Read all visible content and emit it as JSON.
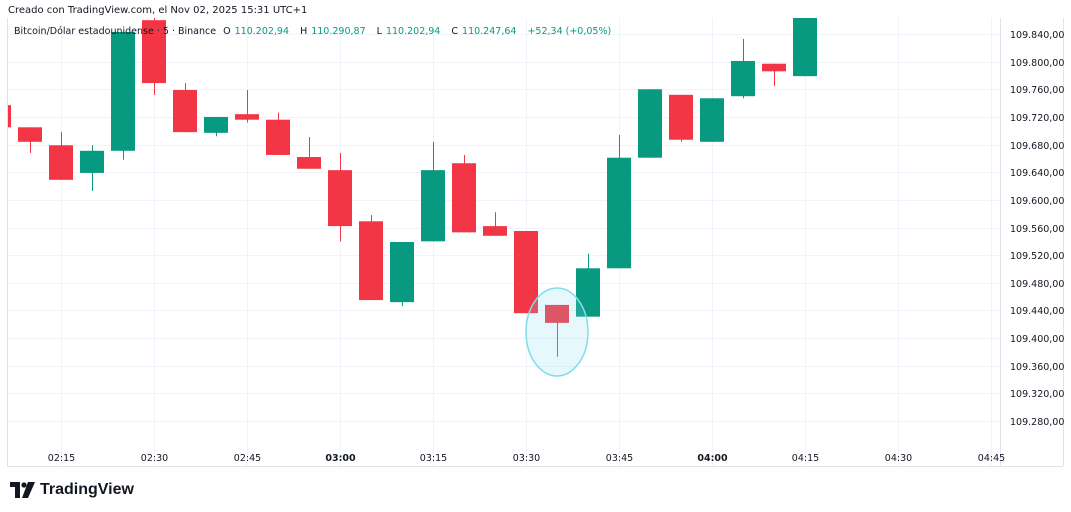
{
  "created_text": "Creado con TradingView.com, el Nov 02, 2025 15:31 UTC+1",
  "legend": {
    "symbol": "Bitcoin/Dólar estadounidense · 5 · Binance",
    "o_label": "O",
    "o": "110.202,94",
    "h_label": "H",
    "h": "110.290,87",
    "l_label": "L",
    "l": "110.202,94",
    "c_label": "C",
    "c": "110.247,64",
    "change": "+52,34 (+0,05%)"
  },
  "logo_text": "TradingView",
  "colors": {
    "up": "#089981",
    "down": "#f23645",
    "grid": "#f0f3fa",
    "highlight": "#80deea"
  },
  "chart_data": {
    "type": "candlestick",
    "grid": true,
    "ylim": [
      109255,
      109865
    ],
    "y_ticks": [
      109840,
      109800,
      109760,
      109720,
      109680,
      109640,
      109600,
      109560,
      109520,
      109480,
      109440,
      109400,
      109360,
      109320,
      109280
    ],
    "y_tick_labels": [
      "109.840,00",
      "109.800,00",
      "109.760,00",
      "109.720,00",
      "109.680,00",
      "109.640,00",
      "109.600,00",
      "109.560,00",
      "109.520,00",
      "109.480,00",
      "109.440,00",
      "109.400,00",
      "109.360,00",
      "109.320,00",
      "109.280,00"
    ],
    "x_ticks": [
      {
        "time": "02:15",
        "label": "02:15",
        "bold": false
      },
      {
        "time": "02:30",
        "label": "02:30",
        "bold": false
      },
      {
        "time": "02:45",
        "label": "02:45",
        "bold": false
      },
      {
        "time": "03:00",
        "label": "03:00",
        "bold": true
      },
      {
        "time": "03:15",
        "label": "03:15",
        "bold": false
      },
      {
        "time": "03:30",
        "label": "03:30",
        "bold": false
      },
      {
        "time": "03:45",
        "label": "03:45",
        "bold": false
      },
      {
        "time": "04:00",
        "label": "04:00",
        "bold": true
      },
      {
        "time": "04:15",
        "label": "04:15",
        "bold": false
      },
      {
        "time": "04:30",
        "label": "04:30",
        "bold": false
      },
      {
        "time": "04:45",
        "label": "04:45",
        "bold": false
      }
    ],
    "candles": [
      {
        "t": "02:05",
        "o": 109737,
        "h": 109745,
        "l": 109700,
        "c": 109705
      },
      {
        "t": "02:10",
        "o": 109705,
        "h": 109705,
        "l": 109668,
        "c": 109684
      },
      {
        "t": "02:15",
        "o": 109679,
        "h": 109698,
        "l": 109629,
        "c": 109629
      },
      {
        "t": "02:20",
        "o": 109639,
        "h": 109679,
        "l": 109613,
        "c": 109671
      },
      {
        "t": "02:25",
        "o": 109671,
        "h": 109843,
        "l": 109658,
        "c": 109843
      },
      {
        "t": "02:30",
        "o": 109860,
        "h": 109865,
        "l": 109752,
        "c": 109769
      },
      {
        "t": "02:35",
        "o": 109759,
        "h": 109769,
        "l": 109698,
        "c": 109698
      },
      {
        "t": "02:40",
        "o": 109697,
        "h": 109720,
        "l": 109692,
        "c": 109720
      },
      {
        "t": "02:45",
        "o": 109724,
        "h": 109759,
        "l": 109712,
        "c": 109716
      },
      {
        "t": "02:50",
        "o": 109716,
        "h": 109726,
        "l": 109665,
        "c": 109665
      },
      {
        "t": "02:55",
        "o": 109662,
        "h": 109691,
        "l": 109645,
        "c": 109645
      },
      {
        "t": "03:00",
        "o": 109643,
        "h": 109668,
        "l": 109540,
        "c": 109562
      },
      {
        "t": "03:05",
        "o": 109569,
        "h": 109578,
        "l": 109455,
        "c": 109455
      },
      {
        "t": "03:10",
        "o": 109452,
        "h": 109539,
        "l": 109446,
        "c": 109539
      },
      {
        "t": "03:15",
        "o": 109540,
        "h": 109684,
        "l": 109540,
        "c": 109643
      },
      {
        "t": "03:20",
        "o": 109653,
        "h": 109665,
        "l": 109553,
        "c": 109553
      },
      {
        "t": "03:25",
        "o": 109562,
        "h": 109582,
        "l": 109548,
        "c": 109548
      },
      {
        "t": "03:30",
        "o": 109555,
        "h": 109555,
        "l": 109436,
        "c": 109436
      },
      {
        "t": "03:35",
        "o": 109448,
        "h": 109448,
        "l": 109373,
        "c": 109422
      },
      {
        "t": "03:40",
        "o": 109431,
        "h": 109522,
        "l": 109431,
        "c": 109501
      },
      {
        "t": "03:45",
        "o": 109501,
        "h": 109694,
        "l": 109501,
        "c": 109661
      },
      {
        "t": "03:50",
        "o": 109661,
        "h": 109760,
        "l": 109661,
        "c": 109760
      },
      {
        "t": "03:55",
        "o": 109752,
        "h": 109752,
        "l": 109684,
        "c": 109687
      },
      {
        "t": "04:00",
        "o": 109684,
        "h": 109747,
        "l": 109684,
        "c": 109747
      },
      {
        "t": "04:05",
        "o": 109750,
        "h": 109833,
        "l": 109747,
        "c": 109801
      },
      {
        "t": "04:10",
        "o": 109797,
        "h": 109797,
        "l": 109765,
        "c": 109786
      },
      {
        "t": "04:15",
        "o": 109779,
        "h": 109880,
        "l": 109779,
        "c": 109870
      }
    ],
    "annotation": {
      "type": "ellipse",
      "around_candle": "03:35"
    }
  }
}
